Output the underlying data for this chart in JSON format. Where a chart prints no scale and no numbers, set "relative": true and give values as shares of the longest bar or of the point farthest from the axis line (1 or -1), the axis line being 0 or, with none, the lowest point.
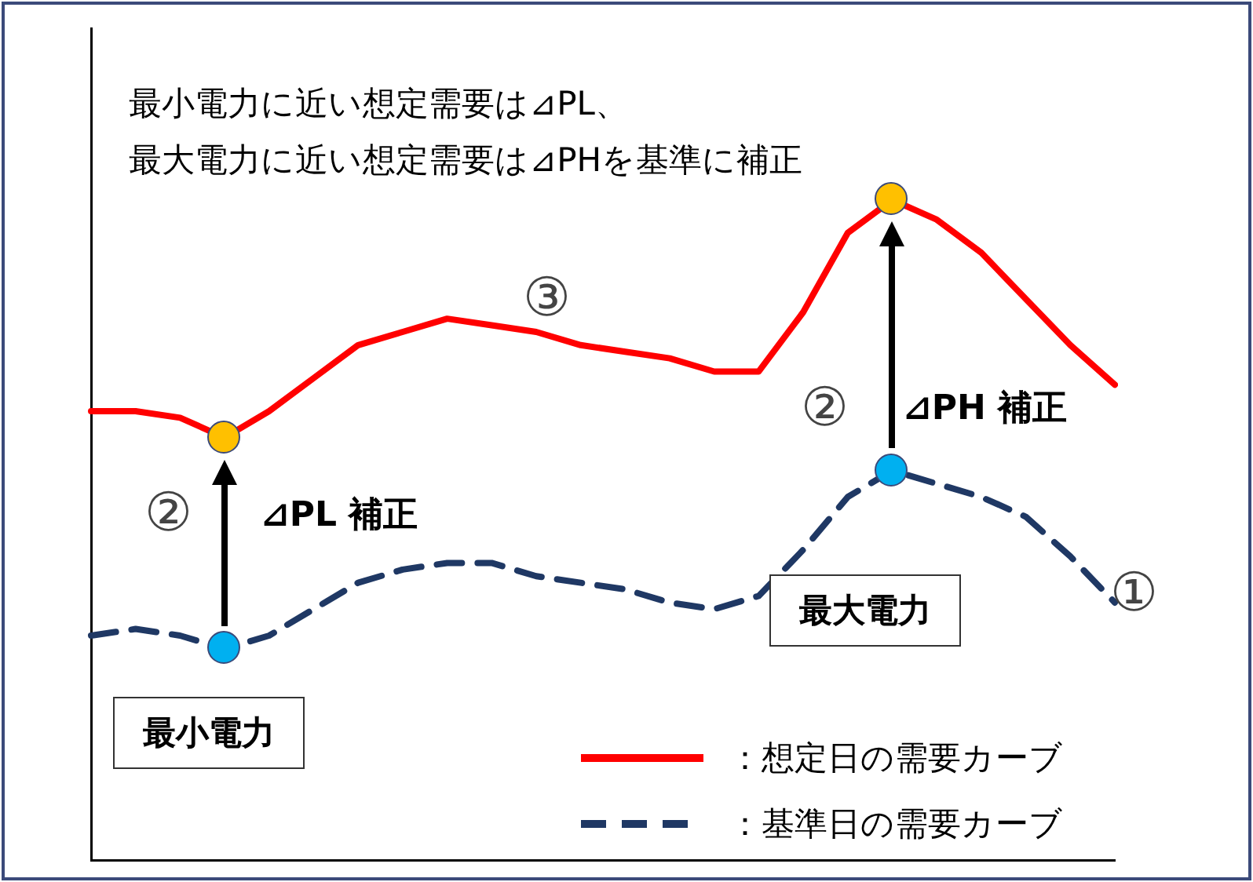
{
  "chart_data": {
    "type": "line",
    "relative": true,
    "grid": false,
    "legend": "bottom right",
    "categories": [
      null,
      null,
      null,
      null,
      null,
      null,
      null,
      null,
      null,
      null,
      null,
      null,
      null,
      null,
      null,
      null,
      null,
      null,
      null,
      null,
      null,
      null,
      null,
      null
    ],
    "series": [
      {
        "name": "：想定日の需要カーブ",
        "color": "#ff0000",
        "line_style": "solid",
        "marker": "none",
        "values": [
          0.68,
          0.68,
          0.67,
          0.64,
          0.68,
          0.73,
          0.78,
          0.8,
          0.82,
          0.81,
          0.8,
          0.78,
          0.77,
          0.76,
          0.74,
          0.74,
          0.83,
          0.95,
          1,
          0.97,
          0.92,
          0.85,
          0.78,
          0.72
        ]
      },
      {
        "name": "：基準日の需要カーブ",
        "color": "#1f3864",
        "line_style": "dashed",
        "marker": "none",
        "values": [
          0.34,
          0.35,
          0.34,
          0.32,
          0.34,
          0.38,
          0.42,
          0.44,
          0.45,
          0.45,
          0.43,
          0.42,
          0.41,
          0.39,
          0.38,
          0.4,
          0.47,
          0.55,
          0.59,
          0.57,
          0.55,
          0.52,
          0.46,
          0.39
        ]
      }
    ],
    "annotations": [
      "最小電力に近い想定需要は⊿PL、",
      "最大電力に近い想定需要は⊿PHを基準に補正",
      "③",
      "②",
      "②",
      "①",
      "⊿PL 補正",
      "⊿PH 補正",
      "最小電力",
      "最大電力"
    ]
  }
}
